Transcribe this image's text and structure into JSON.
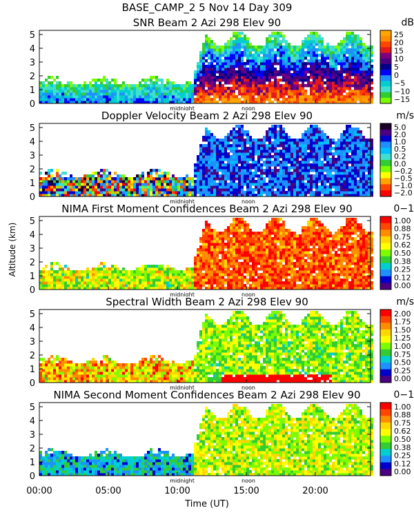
{
  "header": {
    "line1": "BASE_CAMP_2    5 Nov 14 Day 309"
  },
  "axes": {
    "ylabel": "Altitude (km)",
    "xlabel": "Time (UT)",
    "x_ticks": [
      "00:00",
      "05:00",
      "10:00",
      "15:00",
      "20:00"
    ],
    "x_tick_hours": [
      0,
      5,
      10,
      15,
      20
    ],
    "x_range_hours": [
      0,
      24
    ],
    "y_ticks": [
      "0",
      "1",
      "2",
      "3",
      "4",
      "5"
    ],
    "y_range_km": [
      0,
      5.3
    ],
    "markers": [
      {
        "label": "midnight",
        "hour": 10.5
      },
      {
        "label": "noon",
        "hour": 15.3
      }
    ]
  },
  "chart_data": [
    {
      "type": "heatmap",
      "title": "SNR Beam 2 Azi 298 Elev 90",
      "unit": "dB",
      "colorbar_ticks": [
        "25",
        "20",
        "15",
        "10",
        "5",
        "0",
        "−5",
        "−10",
        "−15"
      ],
      "colorbar_colors": [
        "#ffa500",
        "#ff8c00",
        "#ff4500",
        "#e61919",
        "#7f007f",
        "#4b0082",
        "#00008b",
        "#0000ff",
        "#1e90ff",
        "#00ced1",
        "#40e0d0",
        "#32cd32",
        "#7cfc00"
      ]
    },
    {
      "type": "heatmap",
      "title": "Doppler Velocity Beam 2 Azi 298 Elev 90",
      "unit": "m/s",
      "colorbar_ticks": [
        "5.0",
        "2.0",
        "1.0",
        "0.5",
        "0.2",
        "0.0",
        "−0.2",
        "−0.5",
        "−1.0",
        "−2.0"
      ],
      "colorbar_colors": [
        "#1a0026",
        "#4b0082",
        "#0000cd",
        "#1e90ff",
        "#00bfff",
        "#40e0d0",
        "#32cd32",
        "#7cfc00",
        "#ffff00",
        "#ffa500",
        "#ff4500",
        "#ff0000"
      ]
    },
    {
      "type": "heatmap",
      "title": "NIMA First Moment Confidences Beam 2 Azi 298 Elev 90",
      "unit": "0−1",
      "colorbar_ticks": [
        "1.00",
        "0.88",
        "0.75",
        "0.62",
        "0.50",
        "0.38",
        "0.25",
        "0.12",
        "0.00"
      ],
      "colorbar_colors": [
        "#ff0000",
        "#ff4500",
        "#ff8c00",
        "#ffd700",
        "#ffff00",
        "#7cfc00",
        "#32cd32",
        "#00ced1",
        "#1e90ff",
        "#0000cd",
        "#4b0082"
      ]
    },
    {
      "type": "heatmap",
      "title": "Spectral Width Beam 2 Azi 298 Elev 90",
      "unit": "m/s",
      "colorbar_ticks": [
        "2.00",
        "1.75",
        "1.50",
        "1.25",
        "1.00",
        "0.75",
        "0.50",
        "0.25",
        "0.00"
      ],
      "colorbar_colors": [
        "#ff0000",
        "#ff4500",
        "#ff8c00",
        "#ffd700",
        "#ffff00",
        "#7cfc00",
        "#32cd32",
        "#00ced1",
        "#1e90ff",
        "#0000cd",
        "#4b0082"
      ]
    },
    {
      "type": "heatmap",
      "title": "NIMA Second Moment Confidences Beam 2 Azi 298 Elev 90",
      "unit": "0−1",
      "colorbar_ticks": [
        "1.00",
        "0.88",
        "0.75",
        "0.62",
        "0.50",
        "0.38",
        "0.25",
        "0.12",
        "0.00"
      ],
      "colorbar_colors": [
        "#ff0000",
        "#ff4500",
        "#ff8c00",
        "#ffd700",
        "#ffff00",
        "#7cfc00",
        "#32cd32",
        "#00ced1",
        "#1e90ff",
        "#0000cd",
        "#4b0082"
      ]
    }
  ]
}
